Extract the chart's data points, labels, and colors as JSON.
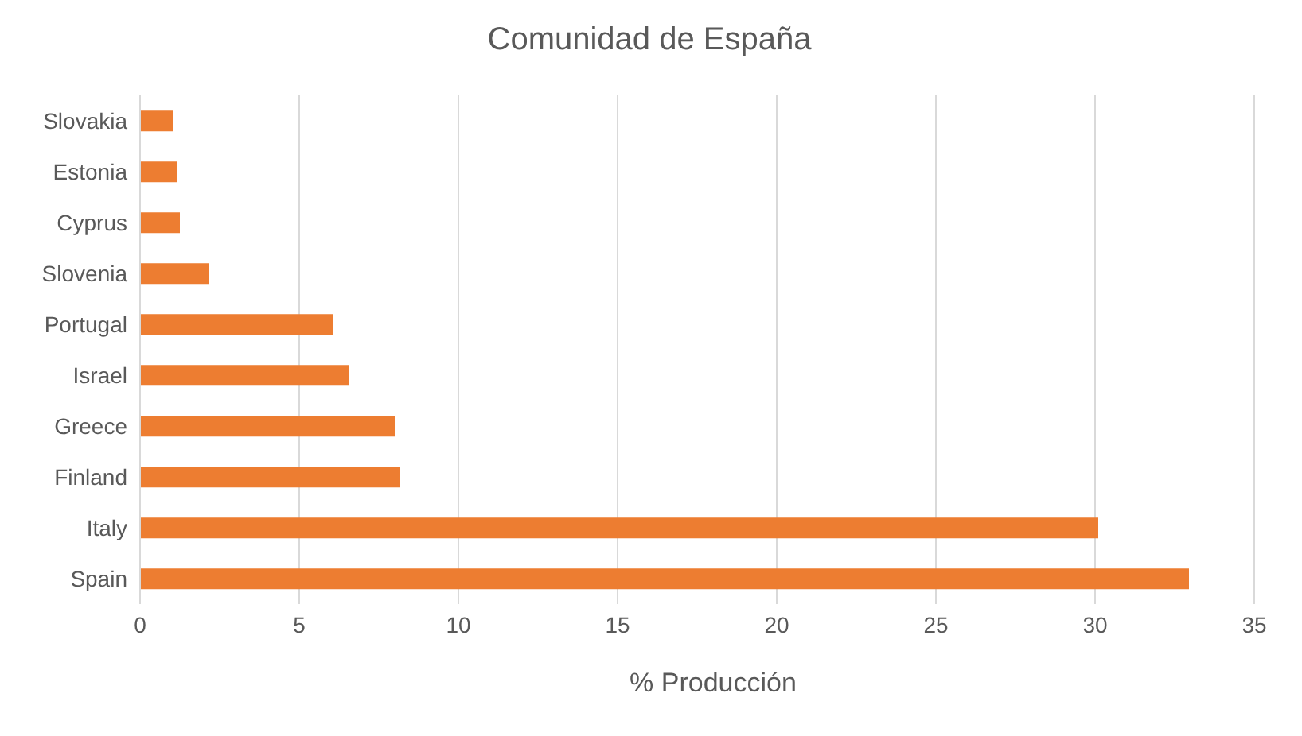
{
  "chart_data": {
    "type": "bar",
    "orientation": "horizontal",
    "title": "Comunidad de España",
    "xlabel": "% Producción",
    "categories": [
      "Slovakia",
      "Estonia",
      "Cyprus",
      "Slovenia",
      "Portugal",
      "Israel",
      "Greece",
      "Finland",
      "Italy",
      "Spain"
    ],
    "values": [
      1.05,
      1.15,
      1.25,
      2.15,
      6.05,
      6.55,
      8,
      8.15,
      30.1,
      32.95
    ],
    "color": "#ed7d31",
    "xlim": [
      0,
      35
    ],
    "xticks": [
      0,
      5,
      10,
      15,
      20,
      25,
      30,
      35
    ],
    "grid": "x"
  }
}
